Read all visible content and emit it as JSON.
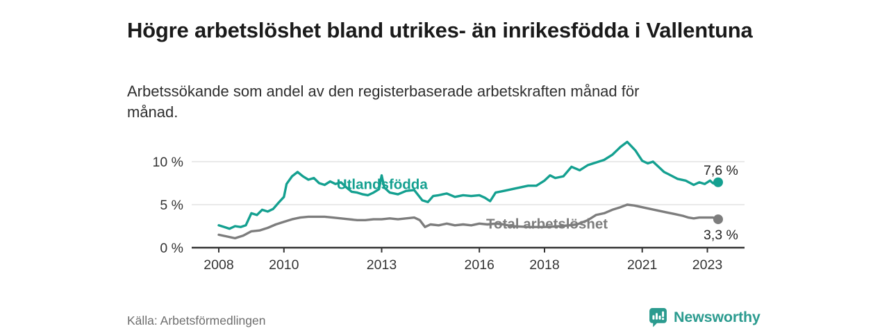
{
  "header": {
    "title": "Högre arbetslöshet bland utrikes- än inrikesfödda i Vallentuna",
    "subtitle": "Arbetssökande som andel av den registerbaserade arbetskraften månad för månad."
  },
  "footer": {
    "source": "Källa: Arbetsförmedlingen",
    "brand": "Newsworthy"
  },
  "colors": {
    "accent_teal": "#14a090",
    "series_gray": "#7d7d7d",
    "axis": "#333333",
    "gridline": "#dcdcdc",
    "tick_text": "#333333",
    "value_label_text": "#222222",
    "brand_teal": "#2b9b8f"
  },
  "icons": {
    "brand_icon": "speech-bubble-bar-chart-icon"
  },
  "chart_data": {
    "type": "line",
    "title": "Högre arbetslöshet bland utrikes- än inrikesfödda i Vallentuna",
    "subtitle": "Arbetssökande som andel av den registerbaserade arbetskraften månad för månad.",
    "unit": "%",
    "grid": "horizontal-only",
    "legend": "inline-labels",
    "x_range": [
      2007.2,
      2024.2
    ],
    "ylim": [
      0,
      13
    ],
    "x_axis": {
      "ticks": [
        {
          "value": 2008,
          "label": "2008"
        },
        {
          "value": 2010,
          "label": "2010"
        },
        {
          "value": 2013,
          "label": "2013"
        },
        {
          "value": 2016,
          "label": "2016"
        },
        {
          "value": 2018,
          "label": "2018"
        },
        {
          "value": 2021,
          "label": "2021"
        },
        {
          "value": 2023,
          "label": "2023"
        }
      ]
    },
    "y_axis": {
      "ticks": [
        {
          "value": 0,
          "label": "0 %"
        },
        {
          "value": 5,
          "label": "5 %"
        },
        {
          "value": 10,
          "label": "10 %"
        }
      ]
    },
    "series": [
      {
        "id": "total",
        "name": "Total arbetslöshet",
        "color": "#7d7d7d",
        "end_label": "3,3 %",
        "end_value": 3.3,
        "label_anchor": [
          2016.21,
          2.2
        ],
        "points": [
          [
            2008.0,
            1.5
          ],
          [
            2008.25,
            1.3
          ],
          [
            2008.5,
            1.1
          ],
          [
            2008.75,
            1.4
          ],
          [
            2009.0,
            1.9
          ],
          [
            2009.25,
            2.0
          ],
          [
            2009.5,
            2.3
          ],
          [
            2009.75,
            2.7
          ],
          [
            2010.0,
            3.0
          ],
          [
            2010.25,
            3.3
          ],
          [
            2010.5,
            3.5
          ],
          [
            2010.75,
            3.6
          ],
          [
            2011.0,
            3.6
          ],
          [
            2011.25,
            3.6
          ],
          [
            2011.5,
            3.5
          ],
          [
            2011.75,
            3.4
          ],
          [
            2012.0,
            3.3
          ],
          [
            2012.25,
            3.2
          ],
          [
            2012.5,
            3.2
          ],
          [
            2012.75,
            3.3
          ],
          [
            2013.0,
            3.3
          ],
          [
            2013.25,
            3.4
          ],
          [
            2013.5,
            3.3
          ],
          [
            2013.75,
            3.4
          ],
          [
            2014.0,
            3.5
          ],
          [
            2014.17,
            3.2
          ],
          [
            2014.33,
            2.4
          ],
          [
            2014.5,
            2.7
          ],
          [
            2014.75,
            2.6
          ],
          [
            2015.0,
            2.8
          ],
          [
            2015.25,
            2.6
          ],
          [
            2015.5,
            2.7
          ],
          [
            2015.75,
            2.6
          ],
          [
            2016.0,
            2.8
          ],
          [
            2016.25,
            2.7
          ],
          [
            2016.5,
            2.8
          ],
          [
            2016.75,
            2.7
          ],
          [
            2017.0,
            2.5
          ],
          [
            2017.5,
            2.4
          ],
          [
            2018.0,
            2.4
          ],
          [
            2018.5,
            2.5
          ],
          [
            2019.0,
            2.7
          ],
          [
            2019.33,
            3.2
          ],
          [
            2019.58,
            3.8
          ],
          [
            2019.83,
            4.0
          ],
          [
            2020.08,
            4.4
          ],
          [
            2020.33,
            4.7
          ],
          [
            2020.54,
            5.0
          ],
          [
            2020.75,
            4.9
          ],
          [
            2021.0,
            4.7
          ],
          [
            2021.25,
            4.5
          ],
          [
            2021.5,
            4.3
          ],
          [
            2021.75,
            4.1
          ],
          [
            2022.0,
            3.9
          ],
          [
            2022.25,
            3.7
          ],
          [
            2022.42,
            3.5
          ],
          [
            2022.58,
            3.4
          ],
          [
            2022.75,
            3.5
          ],
          [
            2023.0,
            3.5
          ],
          [
            2023.17,
            3.5
          ],
          [
            2023.33,
            3.3
          ]
        ]
      },
      {
        "id": "utlandsfodda",
        "name": "Utlandsfödda",
        "color": "#14a090",
        "end_label": "7,6 %",
        "end_value": 7.6,
        "label_anchor": [
          2011.62,
          6.8
        ],
        "points": [
          [
            2008.0,
            2.6
          ],
          [
            2008.17,
            2.4
          ],
          [
            2008.33,
            2.2
          ],
          [
            2008.5,
            2.5
          ],
          [
            2008.67,
            2.4
          ],
          [
            2008.83,
            2.6
          ],
          [
            2009.0,
            4.0
          ],
          [
            2009.17,
            3.8
          ],
          [
            2009.33,
            4.4
          ],
          [
            2009.5,
            4.2
          ],
          [
            2009.67,
            4.5
          ],
          [
            2009.83,
            5.2
          ],
          [
            2010.0,
            5.9
          ],
          [
            2010.08,
            7.4
          ],
          [
            2010.25,
            8.3
          ],
          [
            2010.42,
            8.8
          ],
          [
            2010.58,
            8.3
          ],
          [
            2010.75,
            7.9
          ],
          [
            2010.92,
            8.1
          ],
          [
            2011.08,
            7.5
          ],
          [
            2011.25,
            7.3
          ],
          [
            2011.42,
            7.7
          ],
          [
            2011.58,
            7.4
          ],
          [
            2011.75,
            7.6
          ],
          [
            2011.92,
            7.0
          ],
          [
            2012.08,
            6.5
          ],
          [
            2012.25,
            6.4
          ],
          [
            2012.42,
            6.2
          ],
          [
            2012.58,
            6.1
          ],
          [
            2012.75,
            6.4
          ],
          [
            2012.92,
            6.8
          ],
          [
            2013.0,
            8.4
          ],
          [
            2013.08,
            7.0
          ],
          [
            2013.25,
            6.4
          ],
          [
            2013.5,
            6.2
          ],
          [
            2013.75,
            6.6
          ],
          [
            2014.0,
            6.7
          ],
          [
            2014.25,
            5.5
          ],
          [
            2014.42,
            5.3
          ],
          [
            2014.58,
            6.0
          ],
          [
            2014.75,
            6.1
          ],
          [
            2015.0,
            6.3
          ],
          [
            2015.25,
            5.9
          ],
          [
            2015.5,
            6.1
          ],
          [
            2015.75,
            6.0
          ],
          [
            2016.0,
            6.1
          ],
          [
            2016.17,
            5.8
          ],
          [
            2016.33,
            5.4
          ],
          [
            2016.5,
            6.4
          ],
          [
            2016.75,
            6.6
          ],
          [
            2017.0,
            6.8
          ],
          [
            2017.25,
            7.0
          ],
          [
            2017.5,
            7.2
          ],
          [
            2017.75,
            7.2
          ],
          [
            2018.0,
            7.8
          ],
          [
            2018.17,
            8.4
          ],
          [
            2018.33,
            8.1
          ],
          [
            2018.58,
            8.3
          ],
          [
            2018.83,
            9.4
          ],
          [
            2019.08,
            9.0
          ],
          [
            2019.33,
            9.6
          ],
          [
            2019.58,
            9.9
          ],
          [
            2019.83,
            10.2
          ],
          [
            2020.08,
            10.8
          ],
          [
            2020.33,
            11.7
          ],
          [
            2020.54,
            12.3
          ],
          [
            2020.79,
            11.3
          ],
          [
            2021.0,
            10.1
          ],
          [
            2021.17,
            9.8
          ],
          [
            2021.33,
            10.0
          ],
          [
            2021.5,
            9.4
          ],
          [
            2021.67,
            8.8
          ],
          [
            2021.83,
            8.5
          ],
          [
            2022.08,
            8.0
          ],
          [
            2022.33,
            7.8
          ],
          [
            2022.58,
            7.3
          ],
          [
            2022.75,
            7.6
          ],
          [
            2022.92,
            7.4
          ],
          [
            2023.08,
            7.8
          ],
          [
            2023.17,
            7.5
          ],
          [
            2023.25,
            7.4
          ],
          [
            2023.33,
            7.6
          ]
        ]
      }
    ]
  }
}
